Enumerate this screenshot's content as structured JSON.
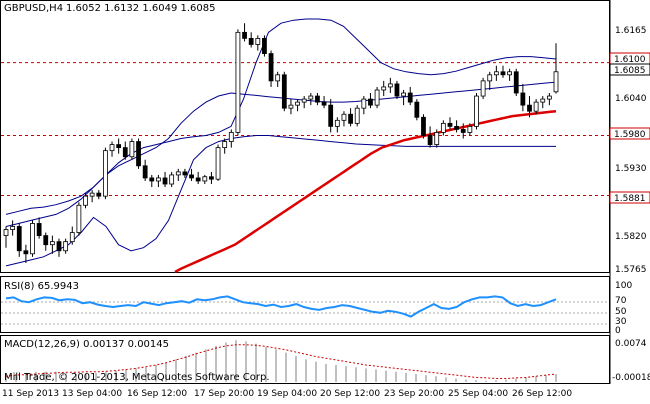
{
  "header": {
    "symbol_timeframe": "GBPUSD,H4",
    "ohlc": "1.6052 1.6132 1.6049 1.6085"
  },
  "price_axis": {
    "ticks": [
      "1.6165",
      "1.6040",
      "1.5930",
      "1.5820",
      "1.5765"
    ],
    "levels": [
      {
        "label": "1.6100",
        "value": 1.61,
        "style": "dashed-red"
      },
      {
        "label": "1.5980",
        "value": 1.598,
        "style": "dashed-red"
      },
      {
        "label": "1.5881",
        "value": 1.5881,
        "style": "dashed-red"
      }
    ],
    "current_price": "1.6085"
  },
  "rsi": {
    "label": "RSI(8) 65.9943",
    "ticks": [
      "100",
      "70",
      "50",
      "30",
      "0"
    ]
  },
  "macd": {
    "label": "MACD(12,26,9) 0.00137 0.00145",
    "ticks": [
      "0.0074",
      "-0.00018"
    ]
  },
  "copyright": "Mill Trade, © 2001-2013, MetaQuotes Software Corp.",
  "time_axis": {
    "labels": [
      "11 Sep 2013",
      "13 Sep 04:00",
      "16 Sep 12:00",
      "17 Sep 20:00",
      "19 Sep 04:00",
      "20 Sep 12:00",
      "23 Sep 20:00",
      "25 Sep 04:00",
      "26 Sep 12:00"
    ]
  },
  "colors": {
    "bull_candle": "#ffffff",
    "bear_candle": "#000000",
    "bollinger": "#00008b",
    "moving_average": "#dd0000",
    "level_line": "#cc0000",
    "rsi_line": "#1e90ff",
    "macd_hist": "#c0c0c0",
    "macd_signal": "#cc0000"
  },
  "chart_data": {
    "type": "candlestick",
    "ylim": [
      1.5755,
      1.62
    ],
    "candles": [
      [
        1.5815,
        1.583,
        1.5795,
        1.5825
      ],
      [
        1.5825,
        1.584,
        1.5815,
        1.583
      ],
      [
        1.583,
        1.5835,
        1.578,
        1.579
      ],
      [
        1.579,
        1.58,
        1.577,
        1.5785
      ],
      [
        1.5785,
        1.584,
        1.578,
        1.5835
      ],
      [
        1.5835,
        1.5845,
        1.581,
        1.5815
      ],
      [
        1.5815,
        1.582,
        1.579,
        1.58
      ],
      [
        1.58,
        1.5815,
        1.5785,
        1.5805
      ],
      [
        1.5805,
        1.581,
        1.578,
        1.579
      ],
      [
        1.579,
        1.581,
        1.5785,
        1.5805
      ],
      [
        1.5805,
        1.583,
        1.58,
        1.582
      ],
      [
        1.582,
        1.587,
        1.5815,
        1.5865
      ],
      [
        1.5865,
        1.5885,
        1.586,
        1.588
      ],
      [
        1.588,
        1.589,
        1.587,
        1.5885
      ],
      [
        1.5885,
        1.589,
        1.5875,
        1.588
      ],
      [
        1.588,
        1.596,
        1.5875,
        1.5955
      ],
      [
        1.5955,
        1.597,
        1.5945,
        1.5965
      ],
      [
        1.5965,
        1.5975,
        1.595,
        1.596
      ],
      [
        1.596,
        1.597,
        1.594,
        1.5945
      ],
      [
        1.5945,
        1.5975,
        1.594,
        1.597
      ],
      [
        1.597,
        1.5975,
        1.5925,
        1.593
      ],
      [
        1.593,
        1.594,
        1.5905,
        1.591
      ],
      [
        1.591,
        1.5915,
        1.5895,
        1.5905
      ],
      [
        1.5905,
        1.5915,
        1.5895,
        1.591
      ],
      [
        1.591,
        1.592,
        1.5895,
        1.59
      ],
      [
        1.59,
        1.592,
        1.5895,
        1.5915
      ],
      [
        1.5915,
        1.5925,
        1.5905,
        1.592
      ],
      [
        1.592,
        1.5925,
        1.591,
        1.5915
      ],
      [
        1.5915,
        1.5925,
        1.5905,
        1.591
      ],
      [
        1.591,
        1.592,
        1.59,
        1.5905
      ],
      [
        1.5905,
        1.5915,
        1.59,
        1.5912
      ],
      [
        1.5912,
        1.592,
        1.59,
        1.5908
      ],
      [
        1.5908,
        1.5965,
        1.5905,
        1.596
      ],
      [
        1.596,
        1.5975,
        1.595,
        1.597
      ],
      [
        1.597,
        1.599,
        1.596,
        1.5985
      ],
      [
        1.5985,
        1.6155,
        1.598,
        1.615
      ],
      [
        1.615,
        1.6165,
        1.6135,
        1.614
      ],
      [
        1.614,
        1.615,
        1.6125,
        1.613
      ],
      [
        1.613,
        1.6145,
        1.612,
        1.614
      ],
      [
        1.614,
        1.6145,
        1.611,
        1.6115
      ],
      [
        1.6115,
        1.612,
        1.606,
        1.607
      ],
      [
        1.607,
        1.6085,
        1.606,
        1.608
      ],
      [
        1.608,
        1.6085,
        1.602,
        1.6025
      ],
      [
        1.6025,
        1.604,
        1.6015,
        1.603
      ],
      [
        1.603,
        1.604,
        1.602,
        1.6035
      ],
      [
        1.6035,
        1.6045,
        1.6025,
        1.604
      ],
      [
        1.604,
        1.605,
        1.603,
        1.6045
      ],
      [
        1.6045,
        1.605,
        1.603,
        1.6035
      ],
      [
        1.6035,
        1.6045,
        1.6025,
        1.603
      ],
      [
        1.603,
        1.604,
        1.5985,
        1.5995
      ],
      [
        1.5995,
        1.601,
        1.5985,
        1.6005
      ],
      [
        1.6005,
        1.602,
        1.5995,
        1.6015
      ],
      [
        1.6015,
        1.6025,
        1.5995,
        1.6
      ],
      [
        1.6,
        1.603,
        1.5995,
        1.6025
      ],
      [
        1.6025,
        1.6045,
        1.6015,
        1.604
      ],
      [
        1.604,
        1.605,
        1.6025,
        1.603
      ],
      [
        1.603,
        1.606,
        1.6025,
        1.6055
      ],
      [
        1.6055,
        1.607,
        1.6045,
        1.606
      ],
      [
        1.606,
        1.6075,
        1.605,
        1.6065
      ],
      [
        1.6065,
        1.607,
        1.604,
        1.6045
      ],
      [
        1.6045,
        1.6055,
        1.603,
        1.605
      ],
      [
        1.605,
        1.606,
        1.603,
        1.6035
      ],
      [
        1.6035,
        1.604,
        1.6005,
        1.601
      ],
      [
        1.601,
        1.6015,
        1.5975,
        1.598
      ],
      [
        1.598,
        1.5995,
        1.596,
        1.5965
      ],
      [
        1.5965,
        1.599,
        1.596,
        1.5985
      ],
      [
        1.5985,
        1.6005,
        1.598,
        1.6
      ],
      [
        1.6,
        1.601,
        1.599,
        1.5995
      ],
      [
        1.5995,
        1.6005,
        1.5985,
        1.599
      ],
      [
        1.599,
        1.6,
        1.5975,
        1.5985
      ],
      [
        1.5985,
        1.6,
        1.598,
        1.5995
      ],
      [
        1.5995,
        1.605,
        1.599,
        1.6045
      ],
      [
        1.6045,
        1.6075,
        1.604,
        1.607
      ],
      [
        1.607,
        1.6085,
        1.6055,
        1.608
      ],
      [
        1.608,
        1.6095,
        1.607,
        1.6085
      ],
      [
        1.6085,
        1.6095,
        1.6075,
        1.608
      ],
      [
        1.608,
        1.609,
        1.607,
        1.6085
      ],
      [
        1.6085,
        1.609,
        1.6045,
        1.605
      ],
      [
        1.605,
        1.6065,
        1.602,
        1.603
      ],
      [
        1.603,
        1.6045,
        1.601,
        1.602
      ],
      [
        1.602,
        1.604,
        1.6015,
        1.6035
      ],
      [
        1.6035,
        1.6045,
        1.6025,
        1.604
      ],
      [
        1.604,
        1.605,
        1.603,
        1.6045
      ],
      [
        1.6052,
        1.6132,
        1.6049,
        1.6085
      ]
    ],
    "ma": [
      1.5755,
      1.576,
      1.5764,
      1.5768,
      1.5772,
      1.5776,
      1.578,
      1.5784,
      1.5788,
      1.5792,
      1.5796,
      1.58,
      1.5806,
      1.5812,
      1.5818,
      1.5824,
      1.583,
      1.5836,
      1.5842,
      1.5848,
      1.5854,
      1.586,
      1.5866,
      1.5872,
      1.5878,
      1.5884,
      1.589,
      1.5896,
      1.5902,
      1.5908,
      1.5914,
      1.592,
      1.5926,
      1.5932,
      1.5938,
      1.5944,
      1.595,
      1.5955,
      1.596,
      1.5963,
      1.5966,
      1.5969,
      1.5972,
      1.5974,
      1.5976,
      1.5978,
      1.598,
      1.5982,
      1.5984,
      1.5986,
      1.5988,
      1.599,
      1.5992,
      1.5994,
      1.5996,
      1.5998,
      1.6,
      1.6002,
      1.6004,
      1.6006,
      1.6008,
      1.601,
      1.6012,
      1.6013,
      1.6014,
      1.6015,
      1.6016,
      1.6017,
      1.6018,
      1.6019,
      1.602
    ],
    "bb_upper": [
      1.585,
      1.5855,
      1.586,
      1.5862,
      1.5866,
      1.5872,
      1.588,
      1.5895,
      1.5915,
      1.5935,
      1.595,
      1.596,
      1.5965,
      1.597,
      1.5975,
      1.5978,
      1.598,
      1.5985,
      1.5995,
      1.604,
      1.61,
      1.615,
      1.6165,
      1.617,
      1.6172,
      1.6172,
      1.617,
      1.616,
      1.614,
      1.612,
      1.61,
      1.609,
      1.6085,
      1.6082,
      1.608,
      1.6082,
      1.6086,
      1.6092,
      1.6098,
      1.6104,
      1.6108,
      1.611,
      1.611,
      1.6108,
      1.6106
    ],
    "bb_mid": [
      1.583,
      1.5835,
      1.584,
      1.5845,
      1.585,
      1.586,
      1.5875,
      1.5895,
      1.5915,
      1.593,
      1.594,
      1.595,
      1.596,
      1.5975,
      1.6,
      1.602,
      1.6035,
      1.6045,
      1.605,
      1.6048,
      1.6046,
      1.6044,
      1.6042,
      1.604,
      1.6038,
      1.6036,
      1.6035,
      1.6035,
      1.6036,
      1.6038,
      1.604,
      1.6042,
      1.6044,
      1.6046,
      1.6048,
      1.605,
      1.6052,
      1.6054,
      1.6056,
      1.6058,
      1.606,
      1.6062,
      1.6064,
      1.6066,
      1.6068
    ],
    "bb_lower": [
      1.5765,
      1.577,
      1.5775,
      1.578,
      1.579,
      1.58,
      1.582,
      1.5845,
      1.583,
      1.58,
      1.579,
      1.5795,
      1.581,
      1.584,
      1.589,
      1.594,
      1.596,
      1.597,
      1.5975,
      1.5978,
      1.598,
      1.598,
      1.5978,
      1.5976,
      1.5974,
      1.5972,
      1.597,
      1.5968,
      1.5966,
      1.5965,
      1.5964,
      1.5963,
      1.5962,
      1.5962,
      1.5962,
      1.5962,
      1.5962,
      1.5962,
      1.5962,
      1.5962,
      1.5962,
      1.5962,
      1.5962,
      1.5962,
      1.5962
    ],
    "rsi": [
      68,
      70,
      62,
      60,
      66,
      70,
      69,
      64,
      66,
      65,
      58,
      60,
      55,
      52,
      50,
      52,
      54,
      52,
      60,
      57,
      54,
      58,
      60,
      62,
      59,
      66,
      64,
      66,
      70,
      72,
      66,
      60,
      58,
      56,
      52,
      55,
      50,
      52,
      56,
      50,
      46,
      44,
      48,
      50,
      54,
      52,
      48,
      44,
      40,
      38,
      42,
      40,
      36,
      30,
      40,
      48,
      56,
      48,
      46,
      50,
      60,
      66,
      70,
      70,
      72,
      70,
      58,
      52,
      56,
      52,
      54,
      60,
      66
    ],
    "macd_hist": [
      0.0012,
      0.0014,
      0.0016,
      0.0018,
      0.0018,
      0.0018,
      0.0016,
      0.0014,
      0.0014,
      0.0016,
      0.0018,
      0.002,
      0.0022,
      0.0024,
      0.0026,
      0.003,
      0.0034,
      0.004,
      0.0046,
      0.0052,
      0.0058,
      0.0064,
      0.007,
      0.0074,
      0.0072,
      0.0068,
      0.0062,
      0.0058,
      0.0052,
      0.0046,
      0.004,
      0.0036,
      0.0032,
      0.003,
      0.0028,
      0.0026,
      0.0024,
      0.0022,
      0.002,
      0.0018,
      0.0016,
      0.0014,
      0.0012,
      0.001,
      0.0008,
      0.0006,
      0.0004,
      0.0003,
      0.0002,
      0.0003,
      0.0004,
      0.0006,
      0.0008,
      0.001,
      0.0012,
      0.0014
    ],
    "macd_signal": [
      0.001,
      0.0012,
      0.0013,
      0.0014,
      0.0015,
      0.0016,
      0.0017,
      0.0017,
      0.0018,
      0.0018,
      0.0019,
      0.002,
      0.0022,
      0.0024,
      0.0027,
      0.003,
      0.0034,
      0.0039,
      0.0044,
      0.005,
      0.0055,
      0.006,
      0.0064,
      0.0066,
      0.0066,
      0.0065,
      0.0063,
      0.006,
      0.0057,
      0.0053,
      0.0049,
      0.0045,
      0.0042,
      0.0039,
      0.0036,
      0.0033,
      0.003,
      0.0028,
      0.0026,
      0.0024,
      0.0022,
      0.002,
      0.0018,
      0.0016,
      0.0014,
      0.0012,
      0.001,
      0.0008,
      0.0007,
      0.0006,
      0.0006,
      0.0007,
      0.0008,
      0.001,
      0.0012,
      0.0014
    ]
  }
}
